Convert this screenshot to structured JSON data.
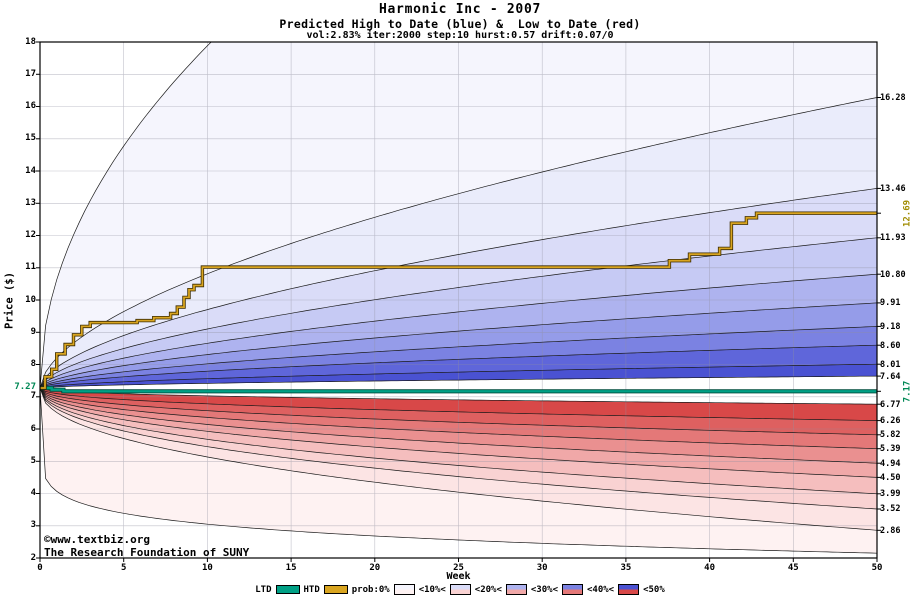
{
  "header": {
    "title": "Harmonic Inc - 2007",
    "subtitle": "Predicted High to Date (blue) &  Low to Date (red)",
    "params": "vol:2.83% iter:2000 step:10 hurst:0.57 drift:0.07/0"
  },
  "axes": {
    "x_label": "Week",
    "y_label": "Price ($)"
  },
  "watermark": {
    "line1": "©www.textbiz.org",
    "line2": "The Research Foundation of SUNY"
  },
  "legend": {
    "ltd_label": "LTD",
    "htd_label": "HTD",
    "prob_labels": [
      "prob:0%",
      "<10%<",
      "<20%<",
      "<30%<",
      "<40%<",
      "<50%"
    ]
  },
  "colors": {
    "ltd_line": "#00a085",
    "ltd_line_edge": "#004d3d",
    "htd_line": "#d9a520",
    "htd_line_edge": "#3a2a00",
    "grid": "#9090a0",
    "frame": "#000000",
    "boundary_line": "#1a1a1a",
    "watermark": "#0000bb",
    "start_label_color": "#008855",
    "htd_label_color": "#a08c00",
    "ltd_label_color": "#008855",
    "blue_bands_inner_to_outer": [
      "#4a52d2",
      "#5f66da",
      "#7b82e2",
      "#959ce9",
      "#aeb3ef",
      "#c6caf4",
      "#dadcf8",
      "#eaecfb",
      "#f5f5fd"
    ],
    "red_bands_inner_to_outer": [
      "#d84848",
      "#de6060",
      "#e47878",
      "#ea9090",
      "#f0a8a8",
      "#f5bebe",
      "#f9d2d2",
      "#fce4e4",
      "#fef2f2"
    ]
  },
  "chart_data": {
    "type": "area",
    "title": "Harmonic Inc - 2007",
    "subtitle": "Predicted High to Date (blue) &  Low to Date (red)",
    "xlabel": "Week",
    "ylabel": "Price ($)",
    "xlim": [
      0,
      50
    ],
    "ylim": [
      2,
      18
    ],
    "x_ticks": [
      0,
      5,
      10,
      15,
      20,
      25,
      30,
      35,
      40,
      45,
      50
    ],
    "y_ticks": [
      2,
      3,
      4,
      5,
      6,
      7,
      8,
      9,
      10,
      11,
      12,
      13,
      14,
      15,
      16,
      17,
      18
    ],
    "grid": true,
    "start_price": 7.27,
    "start_label": "7.27",
    "ltd": {
      "name": "Low to Date",
      "final_value": 7.17,
      "final_label": "7.17",
      "steps": [
        [
          0,
          7.27
        ],
        [
          0.7,
          7.22
        ],
        [
          1.4,
          7.17
        ]
      ]
    },
    "htd": {
      "name": "High to Date",
      "final_value": 12.69,
      "final_label": "12.69",
      "steps": [
        [
          0,
          7.27
        ],
        [
          0.3,
          7.62
        ],
        [
          0.7,
          7.85
        ],
        [
          1.0,
          8.33
        ],
        [
          1.5,
          8.62
        ],
        [
          2.0,
          8.92
        ],
        [
          2.5,
          9.18
        ],
        [
          3.0,
          9.3
        ],
        [
          5.8,
          9.36
        ],
        [
          6.8,
          9.45
        ],
        [
          7.8,
          9.58
        ],
        [
          8.2,
          9.78
        ],
        [
          8.6,
          10.08
        ],
        [
          8.9,
          10.32
        ],
        [
          9.2,
          10.45
        ],
        [
          9.7,
          11.02
        ],
        [
          37.6,
          11.22
        ],
        [
          38.8,
          11.42
        ],
        [
          40.6,
          11.6
        ],
        [
          41.3,
          12.38
        ],
        [
          42.2,
          12.55
        ],
        [
          42.8,
          12.69
        ]
      ]
    },
    "blue_bands": {
      "description": "predicted high-to-date probability fan, decile boundaries at week 50",
      "bounds_at_week50_inner_to_outer": [
        7.64,
        8.01,
        8.6,
        9.18,
        9.91,
        10.8,
        11.93,
        13.46,
        16.28
      ],
      "envelope_end_value": 31.0,
      "exponent": 0.58,
      "envelope_exponent": 0.5
    },
    "red_bands": {
      "description": "predicted low-to-date probability fan, decile boundaries at week 50",
      "bounds_at_week50_inner_to_outer": [
        6.77,
        6.26,
        5.82,
        5.39,
        4.94,
        4.5,
        3.99,
        3.52,
        2.86
      ],
      "envelope_end_value": 2.15,
      "exponent": 0.45,
      "envelope_exponent": 0.12
    },
    "right_axis_labels": [
      {
        "text": "16.28",
        "value": 16.28
      },
      {
        "text": "13.46",
        "value": 13.46
      },
      {
        "text": "11.93",
        "value": 11.93
      },
      {
        "text": "10.80",
        "value": 10.8
      },
      {
        "text": "9.91",
        "value": 9.91
      },
      {
        "text": "9.18",
        "value": 9.18
      },
      {
        "text": "8.60",
        "value": 8.6
      },
      {
        "text": "8.01",
        "value": 8.01
      },
      {
        "text": "7.64",
        "value": 7.64
      },
      {
        "text": "6.77",
        "value": 6.77
      },
      {
        "text": "6.26",
        "value": 6.26
      },
      {
        "text": "5.82",
        "value": 5.82
      },
      {
        "text": "5.39",
        "value": 5.39
      },
      {
        "text": "4.94",
        "value": 4.94
      },
      {
        "text": "4.50",
        "value": 4.5
      },
      {
        "text": "3.99",
        "value": 3.99
      },
      {
        "text": "3.52",
        "value": 3.52
      },
      {
        "text": "2.86",
        "value": 2.86
      }
    ],
    "rotated_right_labels": [
      {
        "text": "12.69",
        "value": 12.69,
        "role": "htd-final"
      },
      {
        "text": "7.17",
        "value": 7.17,
        "role": "ltd-final"
      }
    ]
  }
}
